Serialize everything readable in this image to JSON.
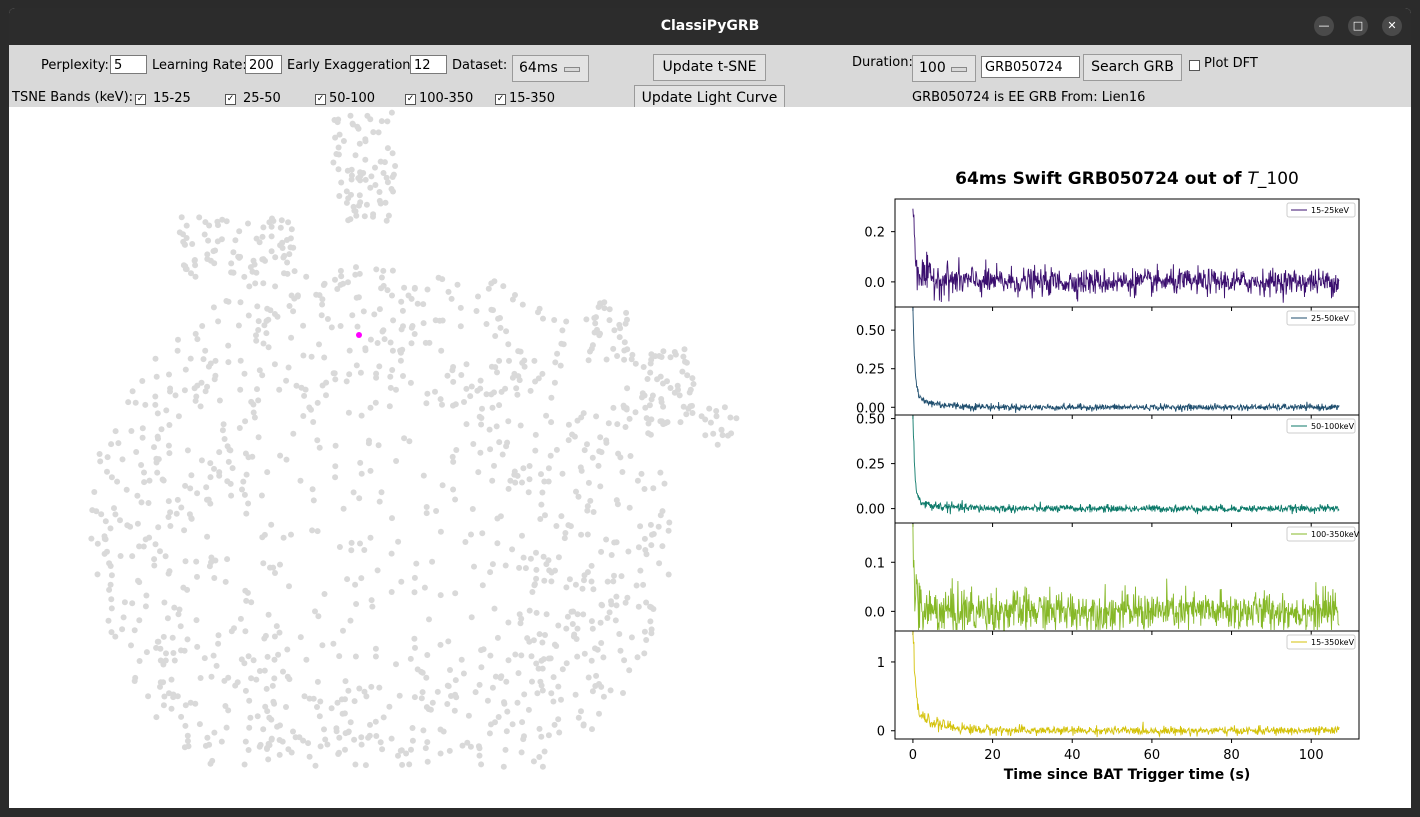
{
  "window": {
    "title": "ClassiPyGRB"
  },
  "toolbar": {
    "perplexity_label": "Perplexity:",
    "perplexity_value": "5",
    "learning_rate_label": "Learning Rate:",
    "learning_rate_value": "200",
    "early_exaggeration_label": "Early Exaggeration:",
    "early_exaggeration_value": "12",
    "dataset_label": "Dataset:",
    "dataset_value": "64ms",
    "update_tsne_label": "Update t-SNE",
    "update_light_curve_label": "Update Light Curve",
    "duration_label": "Duration:",
    "duration_value": "100",
    "grb_search_value": "GRB050724",
    "search_grb_label": "Search GRB",
    "plot_dft_label": "Plot DFT",
    "tsne_bands_label": "TSNE Bands (keV):",
    "bands": [
      {
        "label": "15-25",
        "checked": true
      },
      {
        "label": "25-50",
        "checked": true
      },
      {
        "label": "50-100",
        "checked": true
      },
      {
        "label": "100-350",
        "checked": true
      },
      {
        "label": "15-350",
        "checked": true
      }
    ],
    "status_text": "GRB050724 is EE GRB From: Lien16"
  },
  "chart_data": [
    {
      "type": "scatter",
      "title": "",
      "description_note": "",
      "point_color": "#d9d9d9",
      "highlight_color": "#ff00ff"
    },
    {
      "type": "line",
      "title_prefix": "64ms Swift GRB050724 out of ",
      "title_italic": "T",
      "title_suffix": "_100",
      "xlabel": "Time since BAT Trigger time (s)",
      "xlim": [
        -4.5,
        112
      ],
      "xticks": [
        0,
        20,
        40,
        60,
        80,
        100
      ],
      "x_end": 107,
      "panels": [
        {
          "name": "15-25keV",
          "color": "#3b0f6f",
          "ylim": [
            -0.1,
            0.33
          ],
          "yticks": [
            0.0,
            0.2
          ],
          "ytick_labels": [
            "0.0",
            "0.2"
          ],
          "peak": 0.29,
          "noise": 0.025,
          "decay": 0.12
        },
        {
          "name": "25-50keV",
          "color": "#1f4e6e",
          "ylim": [
            -0.05,
            0.65
          ],
          "yticks": [
            0.0,
            0.25,
            0.5
          ],
          "ytick_labels": [
            "0.00",
            "0.25",
            "0.50"
          ],
          "peak": 0.6,
          "noise": 0.01,
          "decay": 0.1
        },
        {
          "name": "50-100keV",
          "color": "#0d7a6a",
          "ylim": [
            -0.08,
            0.52
          ],
          "yticks": [
            0.0,
            0.25,
            0.5
          ],
          "ytick_labels": [
            "0.00",
            "0.25",
            "0.50"
          ],
          "peak": 0.47,
          "noise": 0.01,
          "decay": 0.08
        },
        {
          "name": "100-350keV",
          "color": "#86b827",
          "ylim": [
            -0.04,
            0.18
          ],
          "yticks": [
            0.0,
            0.1
          ],
          "ytick_labels": [
            "0.0",
            "0.1"
          ],
          "peak": 0.16,
          "noise": 0.02,
          "decay": 0.0
        },
        {
          "name": "15-350keV",
          "color": "#d4c20a",
          "ylim": [
            -0.12,
            1.45
          ],
          "yticks": [
            0,
            1
          ],
          "ytick_labels": [
            "0",
            "1"
          ],
          "peak": 1.4,
          "noise": 0.03,
          "decay": 0.2
        }
      ]
    }
  ]
}
